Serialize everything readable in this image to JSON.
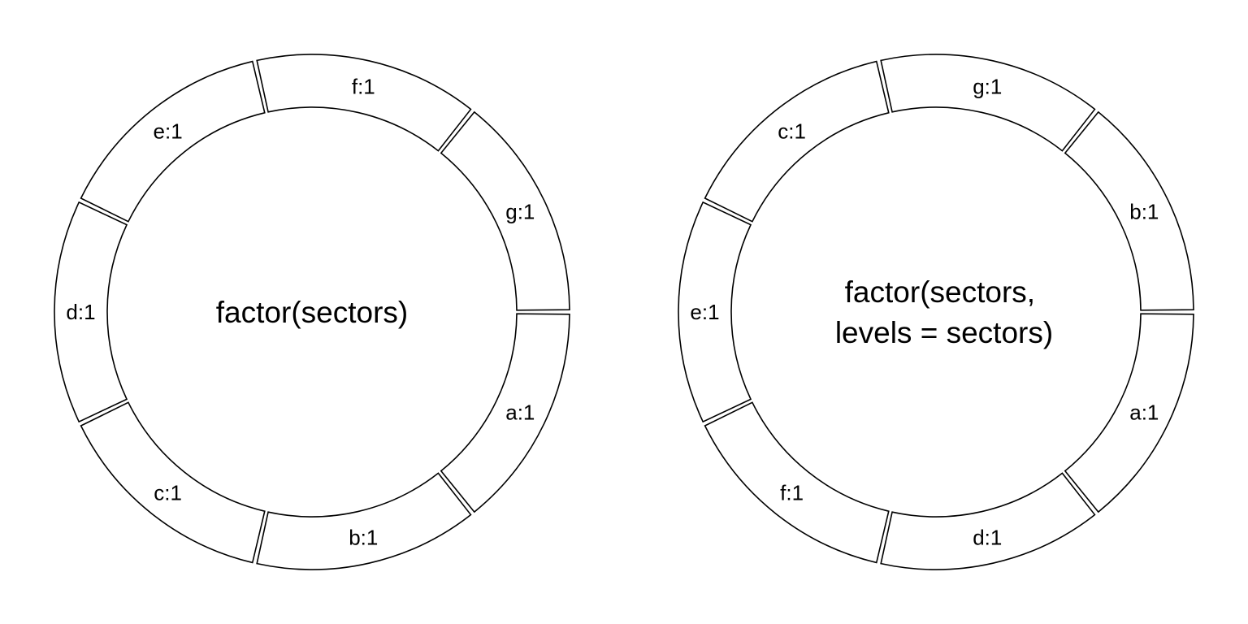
{
  "panels": [
    {
      "center_text": [
        "factor(sectors)"
      ],
      "sectors": [
        {
          "label": "a:1"
        },
        {
          "label": "b:1"
        },
        {
          "label": "c:1"
        },
        {
          "label": "d:1"
        },
        {
          "label": "e:1"
        },
        {
          "label": "f:1"
        },
        {
          "label": "g:1"
        }
      ]
    },
    {
      "center_text": [
        "factor(sectors,",
        "levels = sectors)"
      ],
      "sectors": [
        {
          "label": "a:1"
        },
        {
          "label": "d:1"
        },
        {
          "label": "f:1"
        },
        {
          "label": "e:1"
        },
        {
          "label": "c:1"
        },
        {
          "label": "g:1"
        },
        {
          "label": "b:1"
        }
      ]
    }
  ],
  "colors": {
    "stroke": "#000000",
    "fill": "#ffffff"
  }
}
